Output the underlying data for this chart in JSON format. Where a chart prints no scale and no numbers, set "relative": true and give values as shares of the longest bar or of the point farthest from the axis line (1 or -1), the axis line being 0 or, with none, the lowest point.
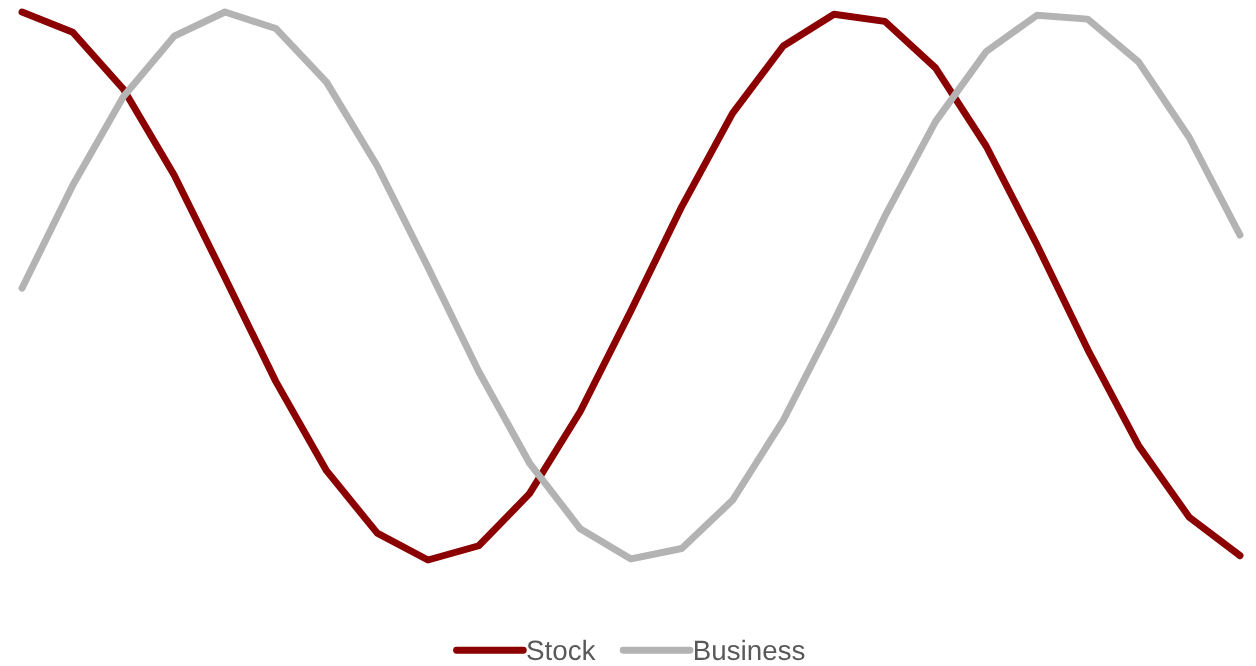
{
  "chart_data": {
    "type": "line",
    "relative": true,
    "legend": "bottom",
    "line_style": "solid",
    "marker": "none",
    "tick_labels": false,
    "categories": [
      null,
      null,
      null,
      null,
      null,
      null,
      null,
      null,
      null,
      null,
      null,
      null,
      null,
      null,
      null,
      null,
      null,
      null,
      null,
      null,
      null,
      null,
      null,
      null,
      null
    ],
    "series": [
      {
        "name": "Stock",
        "color": "#8b0000",
        "values": [
          1.0,
          0.963,
          0.859,
          0.702,
          0.515,
          0.326,
          0.163,
          0.049,
          0.0,
          0.026,
          0.121,
          0.271,
          0.455,
          0.645,
          0.815,
          0.938,
          0.996,
          0.983,
          0.898,
          0.755,
          0.575,
          0.384,
          0.209,
          0.078,
          0.008
        ]
      },
      {
        "name": "Business",
        "color": "#b3b3b3",
        "values": [
          0.496,
          0.684,
          0.846,
          0.956,
          1.0,
          0.97,
          0.872,
          0.719,
          0.534,
          0.344,
          0.177,
          0.057,
          0.002,
          0.021,
          0.109,
          0.255,
          0.436,
          0.627,
          0.8,
          0.928,
          0.994,
          0.987,
          0.909,
          0.771,
          0.593
        ]
      }
    ]
  }
}
